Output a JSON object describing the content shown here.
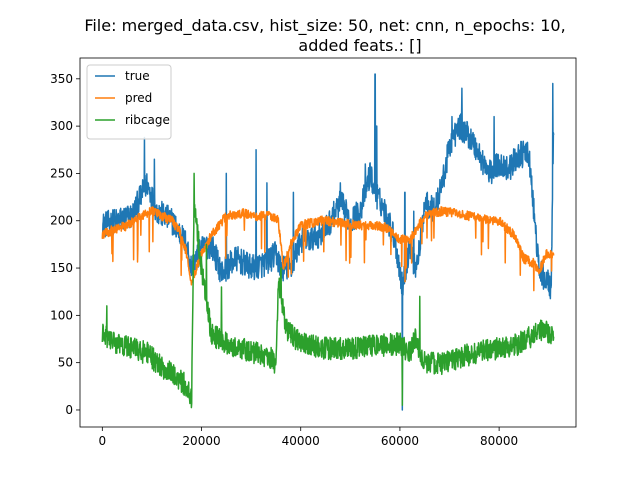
{
  "chart_data": {
    "type": "line",
    "title_line1": "File: merged_data.csv, hist_size: 50, net: cnn, n_epochs: 10,",
    "title_line2": "added feats.: []",
    "xlabel": "",
    "ylabel": "",
    "xlim": [
      -4500,
      95500
    ],
    "ylim": [
      -18,
      372
    ],
    "xticks": [
      0,
      20000,
      40000,
      60000,
      80000
    ],
    "xtick_labels": [
      "0",
      "20000",
      "40000",
      "60000",
      "80000"
    ],
    "yticks": [
      0,
      50,
      100,
      150,
      200,
      250,
      300,
      350
    ],
    "ytick_labels": [
      "0",
      "50",
      "100",
      "150",
      "200",
      "250",
      "300",
      "350"
    ],
    "grid": false,
    "legend_position": "top-left",
    "legend": [
      "true",
      "pred",
      "ribcage"
    ],
    "series": [
      {
        "name": "true",
        "color": "#1f77b4",
        "x": [
          0,
          3000,
          6000,
          9000,
          11000,
          14000,
          17000,
          18000,
          20000,
          22000,
          24000,
          27000,
          30000,
          33000,
          35000,
          36000,
          38000,
          40000,
          42000,
          45000,
          48000,
          50000,
          52000,
          54000,
          55000,
          57000,
          59000,
          60500,
          62000,
          63000,
          64000,
          65000,
          67000,
          69000,
          70000,
          72000,
          74000,
          76000,
          78000,
          80000,
          82000,
          84000,
          86000,
          88000,
          89000,
          90500,
          91000
        ],
        "y": [
          195,
          200,
          205,
          240,
          210,
          200,
          175,
          150,
          170,
          175,
          145,
          160,
          150,
          155,
          165,
          150,
          150,
          180,
          180,
          190,
          220,
          200,
          210,
          250,
          230,
          210,
          180,
          130,
          175,
          150,
          170,
          220,
          210,
          250,
          280,
          300,
          290,
          270,
          250,
          260,
          255,
          270,
          270,
          150,
          140,
          130,
          300
        ],
        "spikes": [
          [
            8500,
            288
          ],
          [
            10500,
            265
          ],
          [
            17800,
            145
          ],
          [
            25000,
            250
          ],
          [
            31000,
            275
          ],
          [
            33200,
            240
          ],
          [
            38500,
            230
          ],
          [
            48000,
            240
          ],
          [
            53000,
            260
          ],
          [
            55000,
            355
          ],
          [
            55300,
            300
          ],
          [
            60500,
            0
          ],
          [
            61000,
            230
          ],
          [
            62800,
            210
          ],
          [
            65500,
            230
          ],
          [
            70500,
            310
          ],
          [
            72500,
            340
          ],
          [
            79000,
            310
          ],
          [
            90800,
            345
          ]
        ]
      },
      {
        "name": "pred",
        "color": "#ff7f0e",
        "x": [
          0,
          2000,
          5000,
          8000,
          10000,
          12000,
          14000,
          15500,
          17000,
          18000,
          20000,
          22000,
          25000,
          28000,
          31000,
          34000,
          35500,
          36500,
          38000,
          40000,
          44000,
          48000,
          52000,
          55000,
          58000,
          60000,
          62000,
          65000,
          68000,
          72000,
          76000,
          80000,
          83000,
          85000,
          87000,
          88000,
          89500,
          91000
        ],
        "y": [
          185,
          190,
          195,
          205,
          210,
          205,
          200,
          190,
          165,
          135,
          165,
          185,
          205,
          208,
          205,
          205,
          200,
          150,
          175,
          195,
          200,
          198,
          195,
          195,
          192,
          180,
          180,
          205,
          210,
          208,
          202,
          200,
          185,
          160,
          155,
          145,
          165,
          165
        ]
      },
      {
        "name": "ribcage",
        "color": "#2ca02c",
        "x": [
          0,
          3000,
          6000,
          9000,
          12000,
          15000,
          17000,
          18000,
          18500,
          20000,
          22000,
          25000,
          28000,
          31000,
          34000,
          35000,
          35500,
          37000,
          40000,
          45000,
          50000,
          55000,
          60000,
          62000,
          63000,
          65000,
          68000,
          72000,
          76000,
          80000,
          84000,
          87000,
          89000,
          91000
        ],
        "y": [
          80,
          70,
          65,
          60,
          45,
          35,
          25,
          10,
          220,
          150,
          80,
          70,
          65,
          60,
          55,
          45,
          140,
          85,
          70,
          65,
          65,
          68,
          70,
          60,
          75,
          50,
          48,
          55,
          62,
          65,
          70,
          80,
          85,
          75
        ],
        "spikes": [
          [
            900,
            110
          ],
          [
            18500,
            250
          ],
          [
            21000,
            175
          ],
          [
            24000,
            130
          ],
          [
            36000,
            150
          ],
          [
            60500,
            5
          ],
          [
            64000,
            120
          ]
        ]
      }
    ]
  }
}
